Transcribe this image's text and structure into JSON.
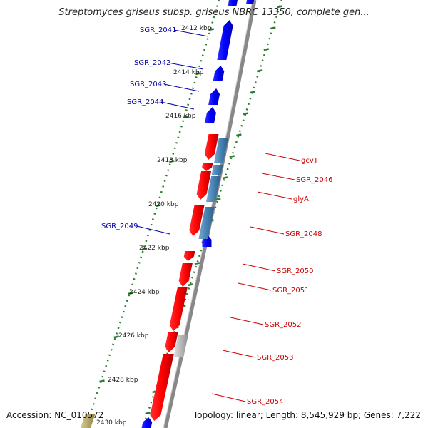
{
  "title": "Streptomyces griseus subsp. griseus NBRC 13350, complete gen...",
  "footer": {
    "accession": "Accession: NC_010572",
    "summary": "Topology: linear; Length: 8,545,929 bp; Genes: 7,222"
  },
  "colors": {
    "forward_gene": "#0000ff",
    "reverse_gene": "#ff0000",
    "reverse_gene_outer": "#4682b4",
    "pseudo_gene": "#b8b8b8",
    "other_gene": "#b5a96b",
    "ruler_tick": "#2e7d32",
    "backbone": "#888888",
    "forward_label": "#0000aa",
    "reverse_label": "#cc0000"
  },
  "ruler_labels": [
    "2412 kbp",
    "2414 kbp",
    "2416 kbp",
    "2418 kbp",
    "2420 kbp",
    "2422 kbp",
    "2424 kbp",
    "2426 kbp",
    "2428 kbp",
    "2430 kbp"
  ],
  "forward_gene_labels": [
    "SGR_2041",
    "SGR_2042",
    "SGR_2043",
    "SGR_2044",
    "SGR_2049"
  ],
  "reverse_gene_labels": [
    "gcvT",
    "SGR_2046",
    "glyA",
    "SGR_2048",
    "SGR_2050",
    "SGR_2051",
    "SGR_2052",
    "SGR_2053",
    "SGR_2054"
  ]
}
